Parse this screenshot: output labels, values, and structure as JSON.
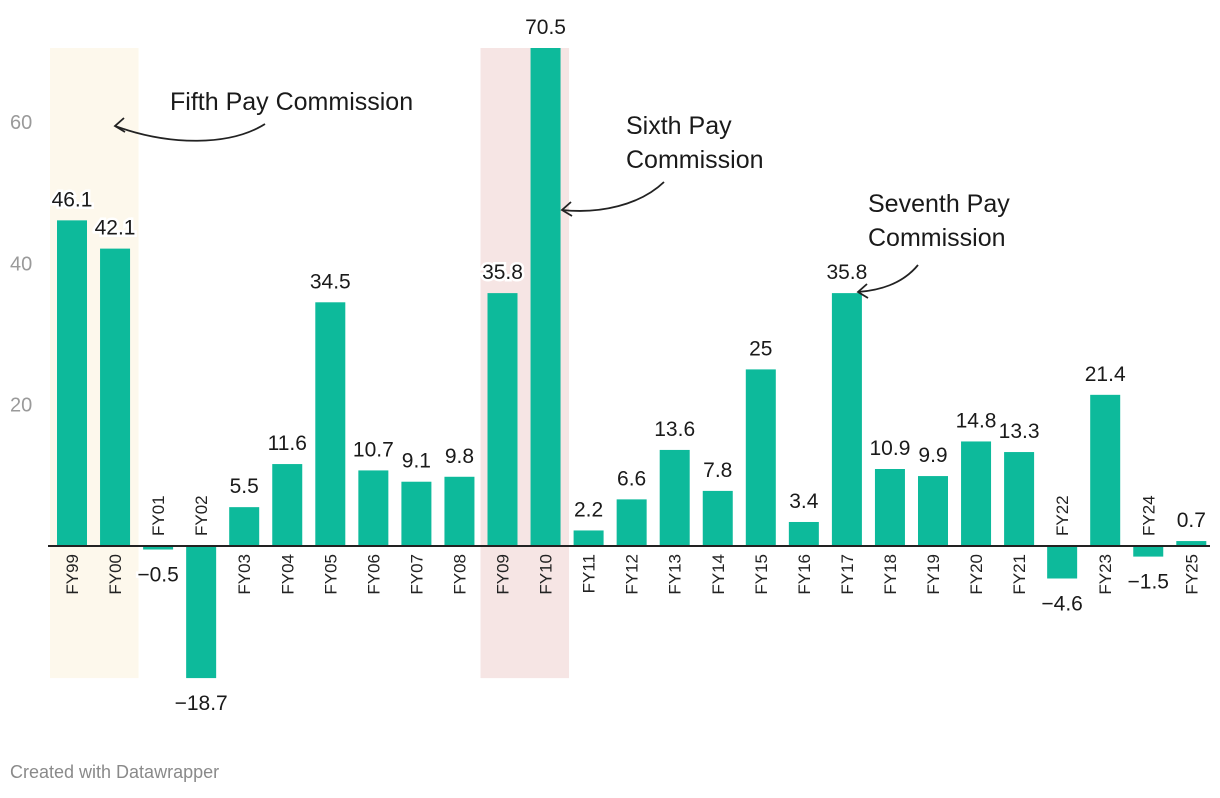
{
  "chart_data": {
    "type": "bar",
    "categories": [
      "FY99",
      "FY00",
      "FY01",
      "FY02",
      "FY03",
      "FY04",
      "FY05",
      "FY06",
      "FY07",
      "FY08",
      "FY09",
      "FY10",
      "FY11",
      "FY12",
      "FY13",
      "FY14",
      "FY15",
      "FY16",
      "FY17",
      "FY18",
      "FY19",
      "FY20",
      "FY21",
      "FY22",
      "FY23",
      "FY24",
      "FY25"
    ],
    "values": [
      46.1,
      42.1,
      -0.5,
      -18.7,
      5.5,
      11.6,
      34.5,
      10.7,
      9.1,
      9.8,
      35.8,
      70.5,
      2.2,
      6.6,
      13.6,
      7.8,
      25,
      3.4,
      35.8,
      10.9,
      9.9,
      14.8,
      13.3,
      -4.6,
      21.4,
      -1.5,
      0.7
    ],
    "value_labels": [
      "46.1",
      "42.1",
      "−0.5",
      "−18.7",
      "5.5",
      "11.6",
      "34.5",
      "10.7",
      "9.1",
      "9.8",
      "35.8",
      "70.5",
      "2.2",
      "6.6",
      "13.6",
      "7.8",
      "25",
      "3.4",
      "35.8",
      "10.9",
      "9.9",
      "14.8",
      "13.3",
      "−4.6",
      "21.4",
      "−1.5",
      "0.7"
    ],
    "y_ticks": [
      {
        "value": 20,
        "label": "20"
      },
      {
        "value": 40,
        "label": "40"
      },
      {
        "value": 60,
        "label": "60"
      }
    ],
    "ylim": [
      -18.7,
      70.5
    ],
    "bar_color": "#0dba9b",
    "highlight_ranges": [
      {
        "from": "FY99",
        "to": "FY00",
        "color": "#fdf8ec"
      },
      {
        "from": "FY09",
        "to": "FY10",
        "color": "#f6e5e4"
      }
    ],
    "annotations": [
      {
        "lines": [
          "Fifth Pay Commission"
        ],
        "target": "FY99"
      },
      {
        "lines": [
          "Sixth Pay",
          "Commission"
        ],
        "target": "FY10"
      },
      {
        "lines": [
          "Seventh Pay",
          "Commission"
        ],
        "target": "FY17"
      }
    ],
    "grid": false,
    "title": "",
    "xlabel": "",
    "ylabel": ""
  },
  "footer": {
    "credit": "Created with Datawrapper"
  }
}
